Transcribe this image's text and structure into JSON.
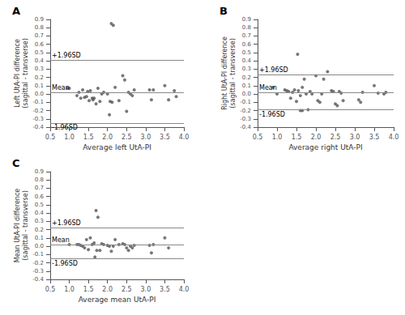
{
  "chart_data": [
    {
      "type": "scatter",
      "title": "A",
      "xlabel": "Average left UtA-PI",
      "ylabel": "Left UtA-PI difference\n(sagittal - transverse)",
      "color": "#555555",
      "x": [
        0.95,
        1.0,
        1.2,
        1.25,
        1.3,
        1.35,
        1.4,
        1.45,
        1.48,
        1.52,
        1.55,
        1.6,
        1.62,
        1.65,
        1.7,
        1.75,
        1.8,
        1.85,
        1.9,
        2.0,
        2.05,
        2.1,
        2.15,
        2.2,
        2.3,
        2.4,
        2.45,
        2.5,
        2.55,
        2.6,
        2.65,
        2.7,
        3.1,
        3.15,
        3.2,
        3.5,
        3.6,
        3.75,
        3.8,
        2.07,
        2.12
      ],
      "values": [
        0.07,
        0.07,
        -0.02,
        0.02,
        -0.05,
        0.05,
        -0.04,
        -0.03,
        0.03,
        -0.08,
        0.04,
        -0.05,
        -0.07,
        -0.05,
        -0.12,
        0.07,
        -0.09,
        0.0,
        0.02,
        0.0,
        -0.25,
        0.85,
        0.83,
        0.08,
        -0.08,
        0.22,
        0.17,
        -0.21,
        0.02,
        0.0,
        -0.02,
        0.05,
        0.05,
        -0.07,
        0.05,
        0.1,
        -0.07,
        0.04,
        -0.03,
        -0.09,
        -0.1
      ],
      "reference_lines": [
        {
          "label": "Mean",
          "value": 0.02
        },
        {
          "label": "+1.96SD",
          "value": 0.41
        },
        {
          "label": "-1.96SD",
          "value": -0.35
        }
      ],
      "xlim": [
        0.5,
        4.0
      ],
      "ylim": [
        -0.4,
        0.9
      ],
      "xticks": [
        0.5,
        {
          "value": 1.0,
          "label": "1.0"
        },
        1.5,
        {
          "value": 2.0,
          "label": "2.0"
        },
        2.5,
        {
          "value": 3.0,
          "label": "3.0"
        },
        3.5,
        {
          "value": 4.0,
          "label": "4.0"
        }
      ],
      "yticks": [
        -0.4,
        -0.3,
        -0.2,
        -0.1,
        {
          "value": 0.0,
          "label": "0.0"
        },
        0.1,
        0.2,
        0.3,
        0.4,
        0.5,
        0.6,
        0.7,
        0.8,
        0.9
      ],
      "grid": false
    },
    {
      "type": "scatter",
      "title": "B",
      "xlabel": "Average right UtA-PI",
      "ylabel": "Right UtA-PI difference\n(sagittal - transverse)",
      "color": "#555555",
      "x": [
        0.9,
        1.0,
        1.2,
        1.25,
        1.3,
        1.35,
        1.4,
        1.45,
        1.5,
        1.53,
        1.55,
        1.6,
        1.65,
        1.7,
        1.75,
        1.8,
        1.85,
        1.9,
        2.0,
        2.05,
        2.1,
        2.15,
        2.2,
        2.3,
        2.4,
        2.45,
        2.5,
        2.55,
        2.6,
        2.65,
        2.7,
        3.1,
        3.15,
        3.2,
        3.5,
        3.6,
        3.75,
        3.8,
        1.6,
        1.65
      ],
      "values": [
        0.08,
        0.0,
        0.05,
        0.04,
        0.03,
        -0.05,
        0.02,
        0.05,
        -0.09,
        0.48,
        0.04,
        -0.02,
        0.08,
        0.18,
        0.0,
        -0.19,
        0.03,
        0.0,
        0.22,
        -0.08,
        -0.1,
        0.0,
        0.18,
        0.27,
        0.04,
        0.03,
        -0.12,
        -0.14,
        0.03,
        0.01,
        -0.08,
        -0.07,
        -0.1,
        0.02,
        0.1,
        0.01,
        0.0,
        0.02,
        -0.2,
        -0.2
      ],
      "reference_lines": [
        {
          "label": "Mean",
          "value": 0.02
        },
        {
          "label": "+1.96SD",
          "value": 0.23
        },
        {
          "label": "-1.96SD",
          "value": -0.19
        }
      ],
      "xlim": [
        0.5,
        4.0
      ],
      "ylim": [
        -0.4,
        0.9
      ],
      "xticks": [
        0.5,
        {
          "value": 1.0,
          "label": "1.0"
        },
        1.5,
        {
          "value": 2.0,
          "label": "2.0"
        },
        2.5,
        {
          "value": 3.0,
          "label": "3.0"
        },
        3.5,
        {
          "value": 4.0,
          "label": "4.0"
        }
      ],
      "yticks": [
        -0.4,
        -0.3,
        -0.2,
        -0.1,
        {
          "value": 0.0,
          "label": "0.0"
        },
        0.1,
        0.2,
        0.3,
        0.4,
        0.5,
        0.6,
        0.7,
        0.8,
        0.9
      ],
      "grid": false
    },
    {
      "type": "scatter",
      "title": "C",
      "xlabel": "Average mean UtA-PI",
      "ylabel": "Mean UtA-PI difference\n(sagittal - transverse)",
      "color": "#555555",
      "x": [
        1.0,
        1.2,
        1.25,
        1.3,
        1.35,
        1.4,
        1.45,
        1.5,
        1.55,
        1.6,
        1.65,
        1.7,
        1.75,
        1.8,
        1.85,
        1.9,
        2.0,
        2.05,
        2.1,
        2.15,
        2.2,
        2.3,
        2.4,
        2.45,
        2.5,
        2.55,
        2.6,
        2.65,
        2.7,
        3.1,
        3.15,
        3.2,
        3.5,
        3.6,
        1.67,
        1.72
      ],
      "values": [
        0.02,
        0.02,
        0.02,
        0.01,
        0.0,
        -0.02,
        0.08,
        -0.04,
        0.1,
        0.02,
        0.04,
        0.43,
        0.35,
        -0.05,
        0.03,
        0.02,
        0.01,
        0.0,
        -0.06,
        0.0,
        0.08,
        0.02,
        0.03,
        0.02,
        -0.02,
        -0.05,
        0.0,
        -0.02,
        0.01,
        0.01,
        -0.08,
        0.02,
        0.1,
        -0.02,
        -0.13,
        -0.05
      ],
      "reference_lines": [
        {
          "label": "Mean",
          "value": 0.02
        },
        {
          "label": "+1.96SD",
          "value": 0.22
        },
        {
          "label": "-1.96SD",
          "value": -0.15
        }
      ],
      "xlim": [
        0.5,
        4.0
      ],
      "ylim": [
        -0.4,
        0.9
      ],
      "xticks": [
        0.5,
        {
          "value": 1.0,
          "label": "1.0"
        },
        1.5,
        {
          "value": 2.0,
          "label": "2.0"
        },
        2.5,
        {
          "value": 3.0,
          "label": "3.0"
        },
        3.5,
        {
          "value": 4.0,
          "label": "4.0"
        }
      ],
      "yticks": [
        -0.4,
        -0.3,
        -0.2,
        -0.1,
        {
          "value": 0.0,
          "label": "0.0"
        },
        0.1,
        0.2,
        0.3,
        0.4,
        0.5,
        0.6,
        0.7,
        0.8,
        0.9
      ],
      "grid": false
    }
  ]
}
